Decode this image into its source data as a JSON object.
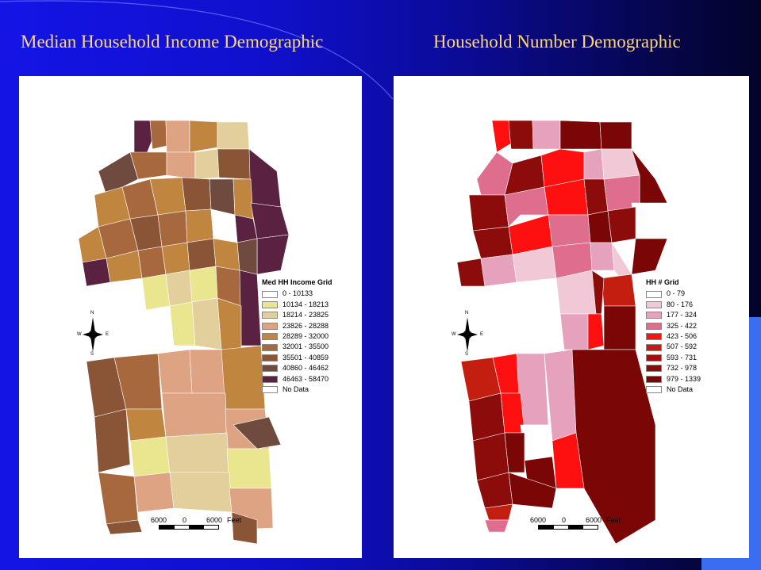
{
  "titles": {
    "left": "Median Household Income Demographic",
    "right": "Household Number Demographic"
  },
  "left_map": {
    "legend_title": "Med HH Income Grid",
    "legend": [
      {
        "label": "0 - 10133",
        "color": "#ffffff"
      },
      {
        "label": "10134 - 18213",
        "color": "#eae68f"
      },
      {
        "label": "18214 - 23825",
        "color": "#e3cf9c"
      },
      {
        "label": "23826 - 28288",
        "color": "#dea383"
      },
      {
        "label": "28289 - 32000",
        "color": "#c0853f"
      },
      {
        "label": "32001 - 35500",
        "color": "#a7683d"
      },
      {
        "label": "35501 - 40859",
        "color": "#8a5436"
      },
      {
        "label": "40860 - 46462",
        "color": "#6e4a3f"
      },
      {
        "label": "46463 - 58470",
        "color": "#5a2140"
      },
      {
        "label": "No Data",
        "color": "#ffffff"
      }
    ],
    "scale": [
      "6000",
      "0",
      "6000",
      "Feet"
    ]
  },
  "right_map": {
    "legend_title": "HH # Grid",
    "legend": [
      {
        "label": "0 - 79",
        "color": "#ffffff"
      },
      {
        "label": "80 - 176",
        "color": "#f1c9d6"
      },
      {
        "label": "177 - 324",
        "color": "#e6a1bc"
      },
      {
        "label": "325 - 422",
        "color": "#de6d8e"
      },
      {
        "label": "423 - 506",
        "color": "#ff1010"
      },
      {
        "label": "507 - 592",
        "color": "#c41e10"
      },
      {
        "label": "593 - 731",
        "color": "#a00f10"
      },
      {
        "label": "732 - 978",
        "color": "#8c0b0b"
      },
      {
        "label": "979 - 1339",
        "color": "#7a0606"
      },
      {
        "label": "No Data",
        "color": "#ffffff"
      }
    ],
    "scale": [
      "6000",
      "0",
      "6000",
      "Feet"
    ]
  },
  "compass": {
    "n": "N",
    "s": "S",
    "e": "E",
    "w": "W"
  }
}
